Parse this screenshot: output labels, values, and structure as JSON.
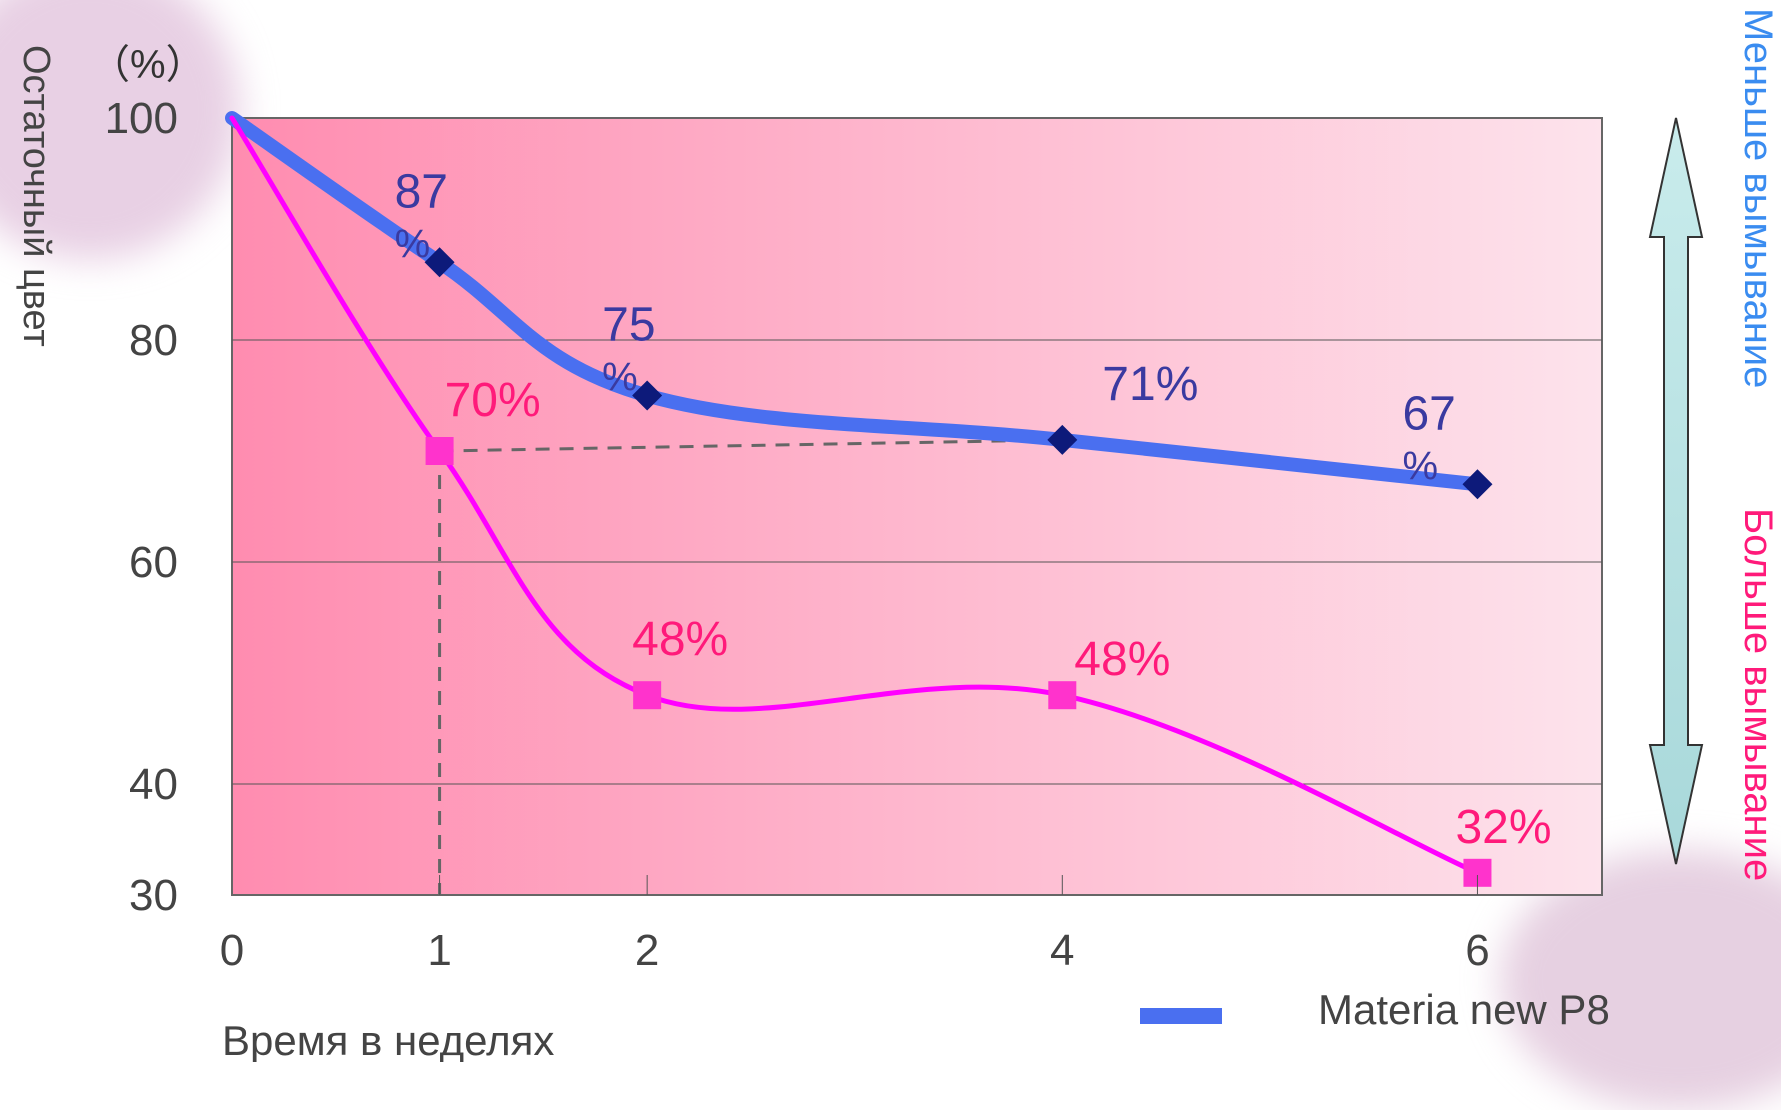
{
  "chart_data": {
    "type": "line",
    "unit_label": "（%）",
    "ylabel": "Остаточный цвет",
    "xlabel": "Время в неделях",
    "ylim": [
      30,
      100
    ],
    "xlim": [
      0,
      6.6
    ],
    "y_ticks": [
      "100",
      "80",
      "60",
      "40",
      "30"
    ],
    "y_tick_values": [
      100,
      80,
      60,
      40,
      30
    ],
    "x_ticks": [
      "0",
      "1",
      "2",
      "4",
      "6"
    ],
    "x_tick_values": [
      0,
      1,
      2,
      4,
      6
    ],
    "grid": "horizontal",
    "series": [
      {
        "name": "Materia new P8",
        "color": "#4a6ff0",
        "marker_color": "#0d1a7a",
        "marker": "diamond",
        "x": [
          0,
          1,
          2,
          4,
          6
        ],
        "y": [
          100,
          87,
          75,
          71,
          67
        ],
        "labels": [
          "",
          "87%",
          "75%",
          "71%",
          "67%"
        ]
      },
      {
        "name": "",
        "color": "#ff00ff",
        "marker_color": "#ff33cc",
        "marker": "square",
        "label_color": "#ff1a7a",
        "x": [
          0,
          1,
          2,
          4,
          6
        ],
        "y": [
          100,
          70,
          48,
          48,
          32
        ],
        "labels": [
          "",
          "70%",
          "48%",
          "48%",
          "32%"
        ]
      }
    ],
    "right_axis": {
      "top_label": "Меньше вымывание",
      "top_color": "#3a8cf0",
      "bottom_label": "Больше вымывание",
      "bottom_color": "#ff1a7a",
      "arrow_color": "#b8e0e0"
    },
    "background_gradient": [
      "#ff8cb0",
      "#fde3ec"
    ]
  }
}
